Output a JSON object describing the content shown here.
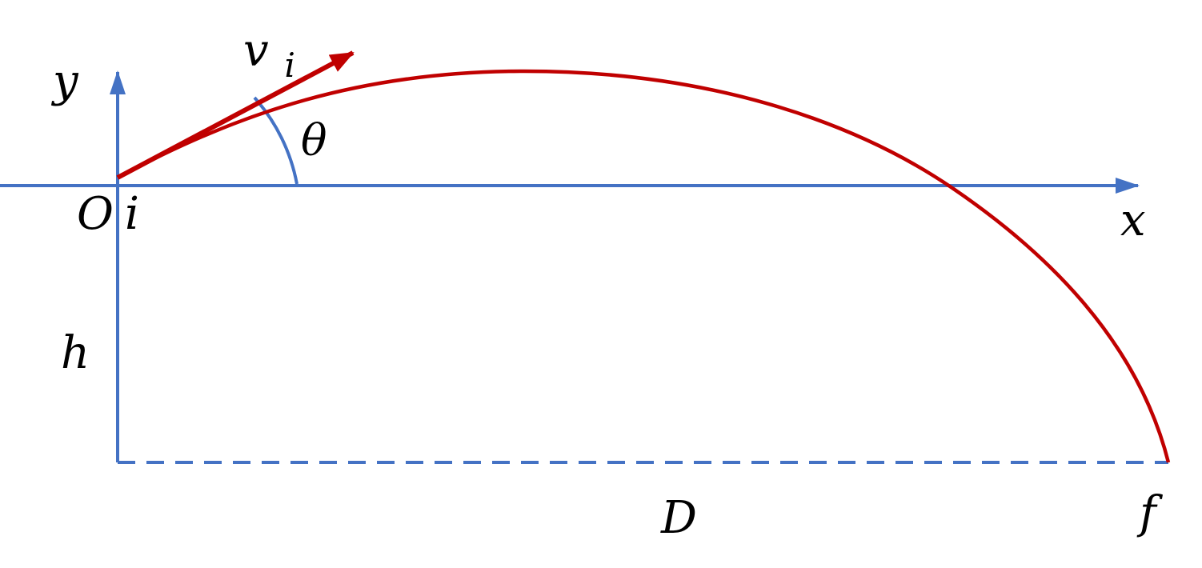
{
  "labels": {
    "y_axis": "y",
    "x_axis": "x",
    "origin": "O",
    "initial_point": "i",
    "velocity_symbol": "v",
    "velocity_subscript": "i",
    "angle": "θ",
    "height": "h",
    "distance": "D",
    "final_point": "f"
  },
  "colors": {
    "axis": "#4472C4",
    "trajectory": "#C00000",
    "velocity_vector": "#C00000",
    "angle_arc": "#4472C4",
    "ground_line": "#4472C4",
    "text": "#000000"
  }
}
